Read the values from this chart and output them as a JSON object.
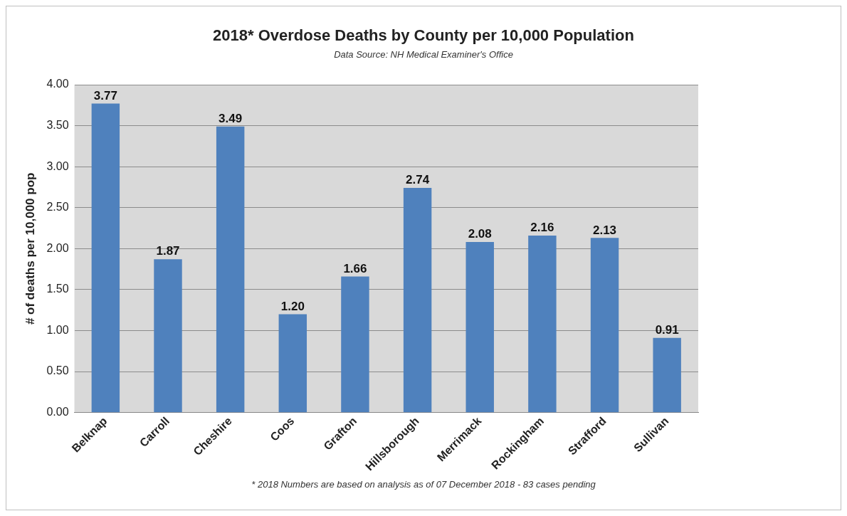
{
  "chart_data": {
    "type": "bar",
    "title": "2018* Overdose Deaths by County per 10,000 Population",
    "subtitle": "Data Source: NH Medical Examiner's Office",
    "ylabel": "# of deaths per 10,000 pop",
    "categories": [
      "Belknap",
      "Carroll",
      "Cheshire",
      "Coos",
      "Grafton",
      "Hillsborough",
      "Merrimack",
      "Rockingham",
      "Strafford",
      "Sullivan"
    ],
    "values": [
      3.77,
      1.87,
      3.49,
      1.2,
      1.66,
      2.74,
      2.08,
      2.16,
      2.13,
      0.91
    ],
    "value_labels": [
      "3.77",
      "1.87",
      "3.49",
      "1.20",
      "1.66",
      "2.74",
      "2.08",
      "2.16",
      "2.13",
      "0.91"
    ],
    "color": "#4f81bd",
    "ylim": [
      0,
      4
    ],
    "yticks": [
      {
        "value": 0,
        "label": "0.00"
      },
      {
        "value": 0.5,
        "label": "0.50"
      },
      {
        "value": 1,
        "label": "1.00"
      },
      {
        "value": 1.5,
        "label": "1.50"
      },
      {
        "value": 2,
        "label": "2.00"
      },
      {
        "value": 2.5,
        "label": "2.50"
      },
      {
        "value": 3,
        "label": "3.00"
      },
      {
        "value": 3.5,
        "label": "3.50"
      },
      {
        "value": 4,
        "label": "4.00"
      }
    ],
    "grid": "y",
    "legend": false,
    "annotations": [
      "* 2018 Numbers are based on analysis as of 07 December 2018 - 83 cases pending"
    ]
  }
}
